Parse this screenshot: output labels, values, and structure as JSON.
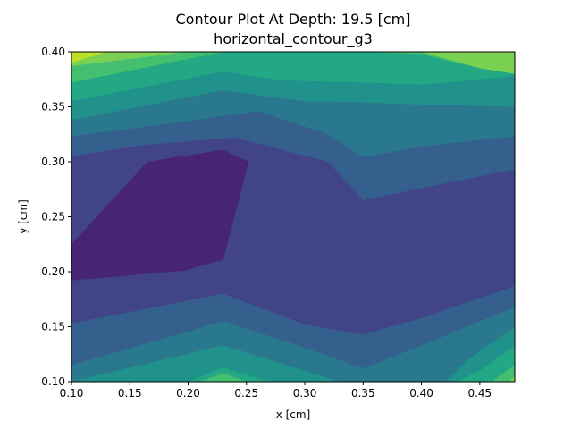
{
  "chart_data": {
    "type": "contour",
    "title": "Contour Plot At Depth: 19.5 [cm]",
    "subtitle": "horizontal_contour_g3",
    "xlabel": "x [cm]",
    "ylabel": "y [cm]",
    "xlim": [
      0.1,
      0.48
    ],
    "ylim": [
      0.1,
      0.4
    ],
    "xticks": [
      "0.10",
      "0.15",
      "0.20",
      "0.25",
      "0.30",
      "0.35",
      "0.40",
      "0.45"
    ],
    "yticks": [
      "0.10",
      "0.15",
      "0.20",
      "0.25",
      "0.30",
      "0.35",
      "0.40"
    ],
    "grid": false,
    "colormap": "viridis",
    "level_colors": [
      "#440154",
      "#482475",
      "#414487",
      "#355f8d",
      "#2a788e",
      "#21918c",
      "#22a884",
      "#44bf70",
      "#7ad151",
      "#bddf26",
      "#fde725"
    ],
    "regions": [
      {
        "level": 3,
        "points": [
          [
            0.1,
            0.4
          ],
          [
            0.48,
            0.4
          ],
          [
            0.48,
            0.1
          ],
          [
            0.1,
            0.1
          ]
        ]
      },
      {
        "level": 2,
        "points": [
          [
            0.1,
            0.305
          ],
          [
            0.16,
            0.315
          ],
          [
            0.24,
            0.322
          ],
          [
            0.32,
            0.3
          ],
          [
            0.35,
            0.265
          ],
          [
            0.4,
            0.276
          ],
          [
            0.48,
            0.293
          ],
          [
            0.48,
            0.187
          ],
          [
            0.4,
            0.158
          ],
          [
            0.35,
            0.143
          ],
          [
            0.3,
            0.152
          ],
          [
            0.23,
            0.18
          ],
          [
            0.1,
            0.153
          ]
        ]
      },
      {
        "level": 1,
        "points": [
          [
            0.1,
            0.225
          ],
          [
            0.165,
            0.3
          ],
          [
            0.23,
            0.311
          ],
          [
            0.252,
            0.3
          ],
          [
            0.23,
            0.211
          ],
          [
            0.197,
            0.201
          ],
          [
            0.1,
            0.192
          ]
        ]
      },
      {
        "level": 4,
        "points": [
          [
            0.1,
            0.4
          ],
          [
            0.48,
            0.4
          ],
          [
            0.48,
            0.323
          ],
          [
            0.4,
            0.314
          ],
          [
            0.35,
            0.304
          ],
          [
            0.32,
            0.325
          ],
          [
            0.26,
            0.346
          ],
          [
            0.2,
            0.337
          ],
          [
            0.1,
            0.323
          ]
        ]
      },
      {
        "level": 5,
        "points": [
          [
            0.1,
            0.4
          ],
          [
            0.48,
            0.4
          ],
          [
            0.48,
            0.35
          ],
          [
            0.4,
            0.352
          ],
          [
            0.35,
            0.354
          ],
          [
            0.3,
            0.355
          ],
          [
            0.23,
            0.365
          ],
          [
            0.1,
            0.338
          ]
        ]
      },
      {
        "level": 6,
        "points": [
          [
            0.1,
            0.4
          ],
          [
            0.48,
            0.4
          ],
          [
            0.48,
            0.378
          ],
          [
            0.4,
            0.37
          ],
          [
            0.35,
            0.372
          ],
          [
            0.28,
            0.374
          ],
          [
            0.23,
            0.382
          ],
          [
            0.1,
            0.355
          ]
        ]
      },
      {
        "level": 7,
        "points": [
          [
            0.1,
            0.4
          ],
          [
            0.48,
            0.4
          ],
          [
            0.48,
            0.38
          ],
          [
            0.45,
            0.385
          ],
          [
            0.4,
            0.398
          ],
          [
            0.35,
            0.4
          ],
          [
            0.25,
            0.4
          ],
          [
            0.23,
            0.4
          ],
          [
            0.1,
            0.372
          ]
        ]
      },
      {
        "level": 8,
        "points": [
          [
            0.1,
            0.4
          ],
          [
            0.23,
            0.4
          ],
          [
            0.2,
            0.4
          ],
          [
            0.1,
            0.387
          ]
        ]
      },
      {
        "level": 8,
        "points": [
          [
            0.4,
            0.4
          ],
          [
            0.48,
            0.4
          ],
          [
            0.48,
            0.38
          ],
          [
            0.45,
            0.385
          ]
        ]
      },
      {
        "level": 9,
        "points": [
          [
            0.1,
            0.4
          ],
          [
            0.13,
            0.4
          ],
          [
            0.1,
            0.39
          ]
        ]
      },
      {
        "level": 4,
        "points": [
          [
            0.1,
            0.1
          ],
          [
            0.48,
            0.1
          ],
          [
            0.48,
            0.168
          ],
          [
            0.4,
            0.133
          ],
          [
            0.35,
            0.112
          ],
          [
            0.3,
            0.131
          ],
          [
            0.23,
            0.155
          ],
          [
            0.1,
            0.115
          ]
        ]
      },
      {
        "level": 5,
        "points": [
          [
            0.1,
            0.1
          ],
          [
            0.33,
            0.1
          ],
          [
            0.23,
            0.133
          ],
          [
            0.1,
            0.1
          ]
        ]
      },
      {
        "level": 5,
        "points": [
          [
            0.37,
            0.1
          ],
          [
            0.48,
            0.1
          ],
          [
            0.48,
            0.15
          ],
          [
            0.44,
            0.12
          ],
          [
            0.42,
            0.1
          ]
        ]
      },
      {
        "level": 6,
        "points": [
          [
            0.17,
            0.1
          ],
          [
            0.27,
            0.1
          ],
          [
            0.23,
            0.113
          ],
          [
            0.2,
            0.1
          ]
        ]
      },
      {
        "level": 6,
        "points": [
          [
            0.43,
            0.1
          ],
          [
            0.48,
            0.1
          ],
          [
            0.48,
            0.133
          ],
          [
            0.45,
            0.11
          ]
        ]
      },
      {
        "level": 7,
        "points": [
          [
            0.21,
            0.1
          ],
          [
            0.25,
            0.1
          ],
          [
            0.23,
            0.108
          ]
        ]
      },
      {
        "level": 7,
        "points": [
          [
            0.46,
            0.1
          ],
          [
            0.48,
            0.1
          ],
          [
            0.48,
            0.115
          ]
        ]
      },
      {
        "level": 8,
        "points": [
          [
            0.475,
            0.1
          ],
          [
            0.48,
            0.1
          ],
          [
            0.48,
            0.105
          ]
        ]
      }
    ]
  }
}
